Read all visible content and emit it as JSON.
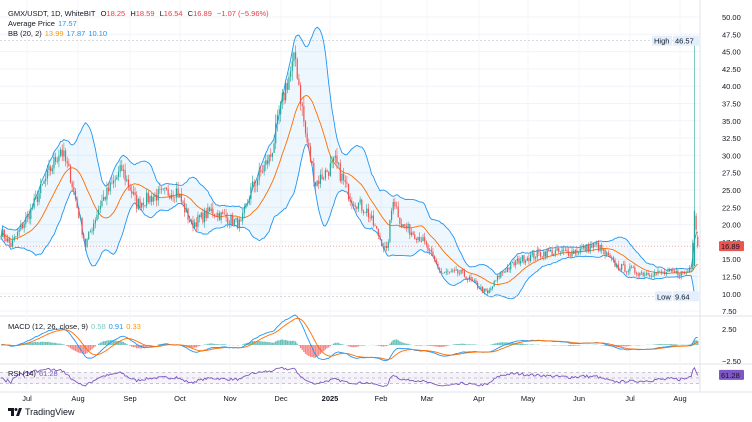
{
  "header": {
    "symbol": "GMX/USDT, 1D, WhiteBIT",
    "o_label": "O",
    "o": "18.25",
    "h_label": "H",
    "h": "18.59",
    "l_label": "L",
    "l": "16.54",
    "c_label": "C",
    "c": "16.89",
    "change": "−1.07 (−5.96%)",
    "avg_label": "Average Price",
    "avg": "17.57",
    "bb_label": "BB (20, 2)",
    "bb_basis": "13.99",
    "bb_upper": "17.87",
    "bb_lower": "10.10"
  },
  "macd": {
    "label": "MACD (12, 26, close, 9)",
    "hist": "0.58",
    "macd": "0.91",
    "signal": "0.33"
  },
  "rsi": {
    "label": "RSI (14)",
    "value": "61.28"
  },
  "brand": "TradingView",
  "colors": {
    "up": "#26a69a",
    "down": "#ef5350",
    "bb": "#2196f3",
    "basis": "#ff6d00",
    "macd": "#2196f3",
    "signal": "#ff6d00",
    "rsi": "#7e57c2"
  },
  "chart_data": {
    "type": "candlestick",
    "price_axis": {
      "ticks": [
        "50.00",
        "47.50",
        "45.00",
        "42.50",
        "40.00",
        "37.50",
        "35.00",
        "32.50",
        "30.00",
        "27.50",
        "25.00",
        "22.50",
        "20.00",
        "17.50",
        "15.00",
        "12.50",
        "10.00",
        "7.50"
      ],
      "range": [
        7.5,
        50
      ]
    },
    "macd_axis": {
      "ticks": [
        "2.50",
        "−2.50"
      ]
    },
    "time_axis": [
      "Jul",
      "Aug",
      "Sep",
      "Oct",
      "Nov",
      "Dec",
      "2025",
      "Feb",
      "Mar",
      "Apr",
      "May",
      "Jun",
      "Jul",
      "Aug"
    ],
    "high_marker": {
      "label": "High",
      "value": "46.57"
    },
    "low_marker": {
      "label": "Low",
      "value": "9.64"
    },
    "last_price": "16.89",
    "approx_closes": [
      [
        "2024-06-15",
        19
      ],
      [
        "2024-06-21",
        17
      ],
      [
        "2024-07-03",
        22
      ],
      [
        "2024-07-21",
        31
      ],
      [
        "2024-07-27",
        27
      ],
      [
        "2024-08-05",
        17
      ],
      [
        "2024-08-14",
        23
      ],
      [
        "2024-08-27",
        28
      ],
      [
        "2024-09-05",
        23
      ],
      [
        "2024-09-14",
        24
      ],
      [
        "2024-09-29",
        25
      ],
      [
        "2024-10-08",
        20
      ],
      [
        "2024-10-20",
        22
      ],
      [
        "2024-11-07",
        20
      ],
      [
        "2024-11-13",
        25
      ],
      [
        "2024-11-25",
        30
      ],
      [
        "2024-12-04",
        40
      ],
      [
        "2024-12-10",
        44
      ],
      [
        "2024-12-16",
        33
      ],
      [
        "2024-12-22",
        26
      ],
      [
        "2025-01-03",
        29
      ],
      [
        "2025-01-12",
        24
      ],
      [
        "2025-01-22",
        22
      ],
      [
        "2025-02-03",
        16
      ],
      [
        "2025-02-07",
        24
      ],
      [
        "2025-02-12",
        20
      ],
      [
        "2025-02-24",
        18
      ],
      [
        "2025-03-08",
        13
      ],
      [
        "2025-03-20",
        13
      ],
      [
        "2025-04-05",
        10
      ],
      [
        "2025-04-13",
        13
      ],
      [
        "2025-04-25",
        15
      ],
      [
        "2025-05-10",
        16
      ],
      [
        "2025-05-25",
        16
      ],
      [
        "2025-06-10",
        17
      ],
      [
        "2025-06-22",
        14
      ],
      [
        "2025-07-07",
        13
      ],
      [
        "2025-07-19",
        13
      ],
      [
        "2025-08-03",
        13
      ],
      [
        "2025-08-06",
        14
      ],
      [
        "2025-08-08",
        22
      ],
      [
        "2025-08-10",
        16.89
      ]
    ]
  }
}
